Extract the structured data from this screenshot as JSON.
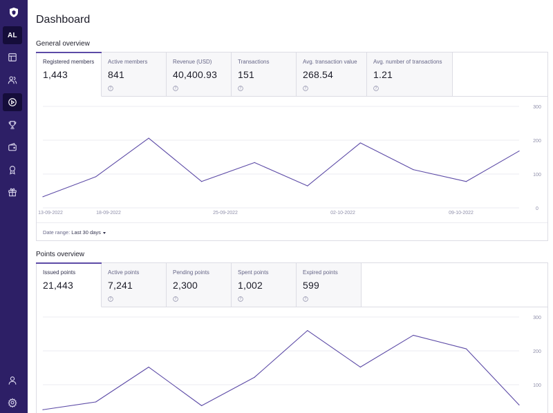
{
  "sidebar": {
    "avatar": "AL",
    "icons": [
      "shield-logo-icon",
      "layout-icon",
      "users-icon",
      "play-circle-icon",
      "trophy-icon",
      "wallet-icon",
      "award-icon",
      "gift-icon",
      "user-icon",
      "settings-icon"
    ]
  },
  "page": {
    "title": "Dashboard"
  },
  "general": {
    "title": "General overview",
    "stats": [
      {
        "label": "Registered members",
        "value": "1,443"
      },
      {
        "label": "Active members",
        "value": "841"
      },
      {
        "label": "Revenue (USD)",
        "value": "40,400.93"
      },
      {
        "label": "Transactions",
        "value": "151"
      },
      {
        "label": "Avg. transaction value",
        "value": "268.54"
      },
      {
        "label": "Avg. number of transactions",
        "value": "1.21"
      }
    ],
    "footer": {
      "label": "Date range:",
      "value": "Last 30 days"
    }
  },
  "points": {
    "title": "Points overview",
    "stats": [
      {
        "label": "Issued points",
        "value": "21,443"
      },
      {
        "label": "Active points",
        "value": "7,241"
      },
      {
        "label": "Pending points",
        "value": "2,300"
      },
      {
        "label": "Spent points",
        "value": "1,002"
      },
      {
        "label": "Expired points",
        "value": "599"
      }
    ]
  },
  "colors": {
    "sidebar": "#2d1f66",
    "sidebar_active": "#150d3a",
    "accent": "#5c4aa6",
    "line": "#5c4aa6",
    "grid": "#ebebf0"
  },
  "chart_data": [
    {
      "type": "line",
      "ylim": [
        0,
        300
      ],
      "yticks": [
        "300",
        "200",
        "100",
        "0"
      ],
      "x_tick_labels": [
        "13-09-2022",
        "18-09-2022",
        "25-09-2022",
        "02-10-2022",
        "09-10-2022"
      ],
      "values": [
        33,
        92,
        206,
        78,
        134,
        65,
        192,
        113,
        78,
        168
      ]
    },
    {
      "type": "line",
      "ylim": [
        0,
        300
      ],
      "yticks": [
        "300",
        "200",
        "100"
      ],
      "values": [
        26,
        49,
        152,
        38,
        122,
        260,
        152,
        246,
        206,
        40
      ]
    }
  ]
}
